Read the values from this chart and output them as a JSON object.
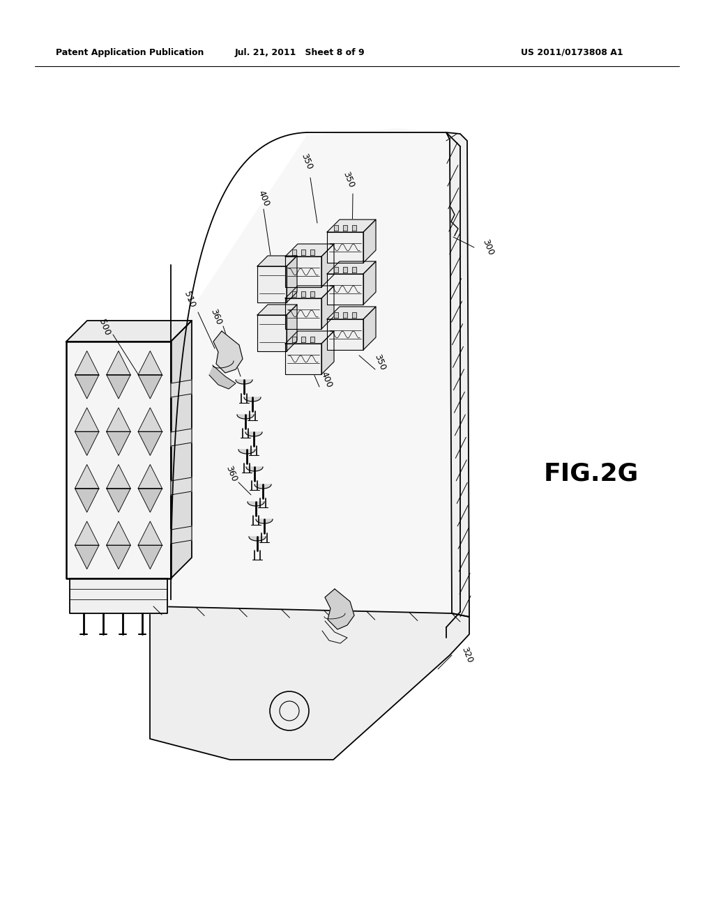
{
  "bg_color": "#ffffff",
  "header_left": "Patent Application Publication",
  "header_center": "Jul. 21, 2011   Sheet 8 of 9",
  "header_right": "US 2011/0173808 A1",
  "fig_label": "FIG.2G",
  "line_color": "#000000",
  "text_color": "#000000",
  "board_face_color": "#f8f8f8",
  "board_edge_color": "#e0e0e0"
}
